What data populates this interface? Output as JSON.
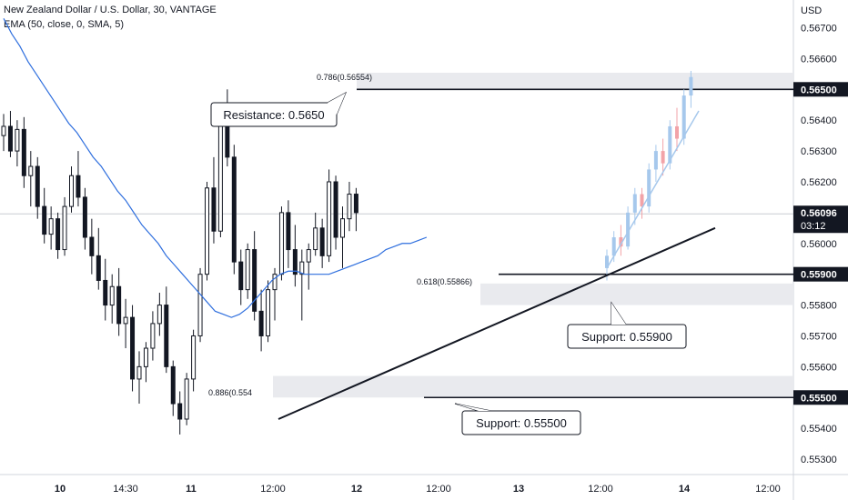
{
  "header": {
    "title": "New Zealand Dollar / U.S. Dollar, 30, VANTAGE",
    "indicator": "EMA (50, close, 0, SMA, 5)"
  },
  "currency": "USD",
  "colors": {
    "up": "#131722",
    "down": "#131722",
    "ema": "#2f6fde",
    "projection_up": "#a6c8ec",
    "projection_down": "#f2a3a8",
    "zone": "#e9eaee",
    "axis_text": "#131722",
    "label_bg": "#131722"
  },
  "price_labels": [
    {
      "text": "0.56500",
      "price": 0.565
    },
    {
      "text": "0.56096",
      "price": 0.56096,
      "sub": "03:12"
    },
    {
      "text": "0.55900",
      "price": 0.559
    },
    {
      "text": "0.55500",
      "price": 0.555
    }
  ],
  "annotations": {
    "resistance": "Resistance: 0.5650",
    "support_1": "Support: 0.55900",
    "support_2": "Support: 0.55500",
    "fib_786": "0.786(0.56554)",
    "fib_618": "0.618(0.55866)",
    "fib_886": "0.886(0.554"
  },
  "chart_data": {
    "type": "candlestick",
    "title": "New Zealand Dollar / U.S. Dollar, 30, VANTAGE",
    "indicator": "EMA (50, close, 0, SMA, 5)",
    "ylabel": "USD",
    "ylim": [
      0.5525,
      0.5679
    ],
    "y_ticks": [
      "0.56700",
      "0.56600",
      "0.56500",
      "0.56400",
      "0.56300",
      "0.56200",
      "0.56100",
      "0.56000",
      "0.55900",
      "0.55800",
      "0.55700",
      "0.55600",
      "0.55500",
      "0.55400",
      "0.55300"
    ],
    "x_ticks": [
      "10",
      "14:30",
      "11",
      "12:00",
      "12",
      "12:00",
      "13",
      "12:00",
      "14",
      "12:00"
    ],
    "levels": [
      {
        "label": "Resistance: 0.5650",
        "price": 0.565
      },
      {
        "label": "Support: 0.55900",
        "price": 0.559
      },
      {
        "label": "Support: 0.55500",
        "price": 0.555
      }
    ],
    "zones": [
      [
        0.565,
        0.56554
      ],
      [
        0.558,
        0.5587
      ],
      [
        0.555,
        0.5557
      ]
    ],
    "last_price": 0.56096,
    "ema": [
      0.5673,
      0.5668,
      0.5664,
      0.5659,
      0.5655,
      0.5651,
      0.5647,
      0.5643,
      0.5639,
      0.5636,
      0.5632,
      0.5628,
      0.5625,
      0.5621,
      0.5617,
      0.5614,
      0.561,
      0.5606,
      0.5603,
      0.56,
      0.5596,
      0.5593,
      0.559,
      0.5587,
      0.5584,
      0.5581,
      0.5578,
      0.5577,
      0.5576,
      0.5577,
      0.5579,
      0.5582,
      0.5585,
      0.5588,
      0.559,
      0.5591,
      0.5591,
      0.559,
      0.559,
      0.559,
      0.559,
      0.5591,
      0.5592,
      0.5593,
      0.5594,
      0.5595,
      0.5596,
      0.5598,
      0.5599,
      0.56,
      0.56,
      0.5601,
      0.5602
    ],
    "candles": [
      [
        0.5635,
        0.5642,
        0.563,
        0.5638
      ],
      [
        0.5638,
        0.5643,
        0.5628,
        0.563
      ],
      [
        0.563,
        0.564,
        0.5625,
        0.5637
      ],
      [
        0.5637,
        0.5641,
        0.5618,
        0.5622
      ],
      [
        0.5622,
        0.563,
        0.5612,
        0.5625
      ],
      [
        0.5625,
        0.5628,
        0.5608,
        0.5612
      ],
      [
        0.5612,
        0.5618,
        0.56,
        0.5603
      ],
      [
        0.5603,
        0.5612,
        0.5598,
        0.5608
      ],
      [
        0.5608,
        0.561,
        0.5595,
        0.5598
      ],
      [
        0.5598,
        0.5615,
        0.5596,
        0.5612
      ],
      [
        0.5612,
        0.5625,
        0.561,
        0.5622
      ],
      [
        0.5622,
        0.563,
        0.5612,
        0.5615
      ],
      [
        0.5615,
        0.5618,
        0.5598,
        0.5602
      ],
      [
        0.5602,
        0.5608,
        0.559,
        0.5596
      ],
      [
        0.5596,
        0.5605,
        0.5585,
        0.5588
      ],
      [
        0.5588,
        0.5595,
        0.5575,
        0.558
      ],
      [
        0.558,
        0.559,
        0.5574,
        0.5586
      ],
      [
        0.5586,
        0.5592,
        0.557,
        0.5574
      ],
      [
        0.5574,
        0.5582,
        0.5566,
        0.5576
      ],
      [
        0.5576,
        0.558,
        0.5552,
        0.5556
      ],
      [
        0.5556,
        0.5565,
        0.5548,
        0.556
      ],
      [
        0.556,
        0.5568,
        0.5555,
        0.5566
      ],
      [
        0.5566,
        0.5578,
        0.5562,
        0.5574
      ],
      [
        0.5574,
        0.5584,
        0.557,
        0.558
      ],
      [
        0.558,
        0.5586,
        0.5558,
        0.556
      ],
      [
        0.556,
        0.5562,
        0.5544,
        0.5548
      ],
      [
        0.5548,
        0.5552,
        0.5538,
        0.5543
      ],
      [
        0.5543,
        0.5558,
        0.5541,
        0.5556
      ],
      [
        0.5556,
        0.5572,
        0.5552,
        0.557
      ],
      [
        0.557,
        0.5592,
        0.5568,
        0.559
      ],
      [
        0.559,
        0.562,
        0.5588,
        0.5618
      ],
      [
        0.5618,
        0.5628,
        0.56,
        0.5604
      ],
      [
        0.5604,
        0.5645,
        0.5602,
        0.5642
      ],
      [
        0.5642,
        0.565,
        0.5625,
        0.5628
      ],
      [
        0.5628,
        0.5632,
        0.559,
        0.5594
      ],
      [
        0.5594,
        0.5598,
        0.558,
        0.5585
      ],
      [
        0.5585,
        0.56,
        0.5582,
        0.5598
      ],
      [
        0.5598,
        0.5604,
        0.5575,
        0.5578
      ],
      [
        0.5578,
        0.5585,
        0.5565,
        0.557
      ],
      [
        0.557,
        0.5588,
        0.5568,
        0.5585
      ],
      [
        0.5585,
        0.5592,
        0.5575,
        0.559
      ],
      [
        0.559,
        0.5612,
        0.5588,
        0.561
      ],
      [
        0.561,
        0.5614,
        0.5592,
        0.5598
      ],
      [
        0.5598,
        0.5606,
        0.5586,
        0.559
      ],
      [
        0.559,
        0.5598,
        0.5575,
        0.5594
      ],
      [
        0.5594,
        0.56,
        0.5585,
        0.5598
      ],
      [
        0.5598,
        0.561,
        0.5596,
        0.5605
      ],
      [
        0.5605,
        0.5608,
        0.5592,
        0.5596
      ],
      [
        0.5596,
        0.5624,
        0.5594,
        0.562
      ],
      [
        0.562,
        0.5622,
        0.5598,
        0.5602
      ],
      [
        0.5602,
        0.5612,
        0.5592,
        0.5608
      ],
      [
        0.5608,
        0.562,
        0.5604,
        0.5616
      ],
      [
        0.5616,
        0.5618,
        0.5604,
        0.561
      ]
    ],
    "projection": [
      [
        0.5592,
        0.5598,
        0.5588,
        0.5596
      ],
      [
        0.5596,
        0.5604,
        0.5594,
        0.5602
      ],
      [
        0.5602,
        0.5606,
        0.5596,
        0.5599
      ],
      [
        0.5599,
        0.5612,
        0.5598,
        0.561
      ],
      [
        0.561,
        0.5618,
        0.5606,
        0.5616
      ],
      [
        0.5616,
        0.5618,
        0.5608,
        0.5612
      ],
      [
        0.5612,
        0.5626,
        0.561,
        0.5624
      ],
      [
        0.5624,
        0.5632,
        0.562,
        0.563
      ],
      [
        0.563,
        0.5634,
        0.5622,
        0.5626
      ],
      [
        0.5626,
        0.564,
        0.5624,
        0.5638
      ],
      [
        0.5638,
        0.5644,
        0.563,
        0.5634
      ],
      [
        0.5634,
        0.565,
        0.5632,
        0.5648
      ],
      [
        0.5648,
        0.5656,
        0.5644,
        0.5654
      ]
    ]
  }
}
